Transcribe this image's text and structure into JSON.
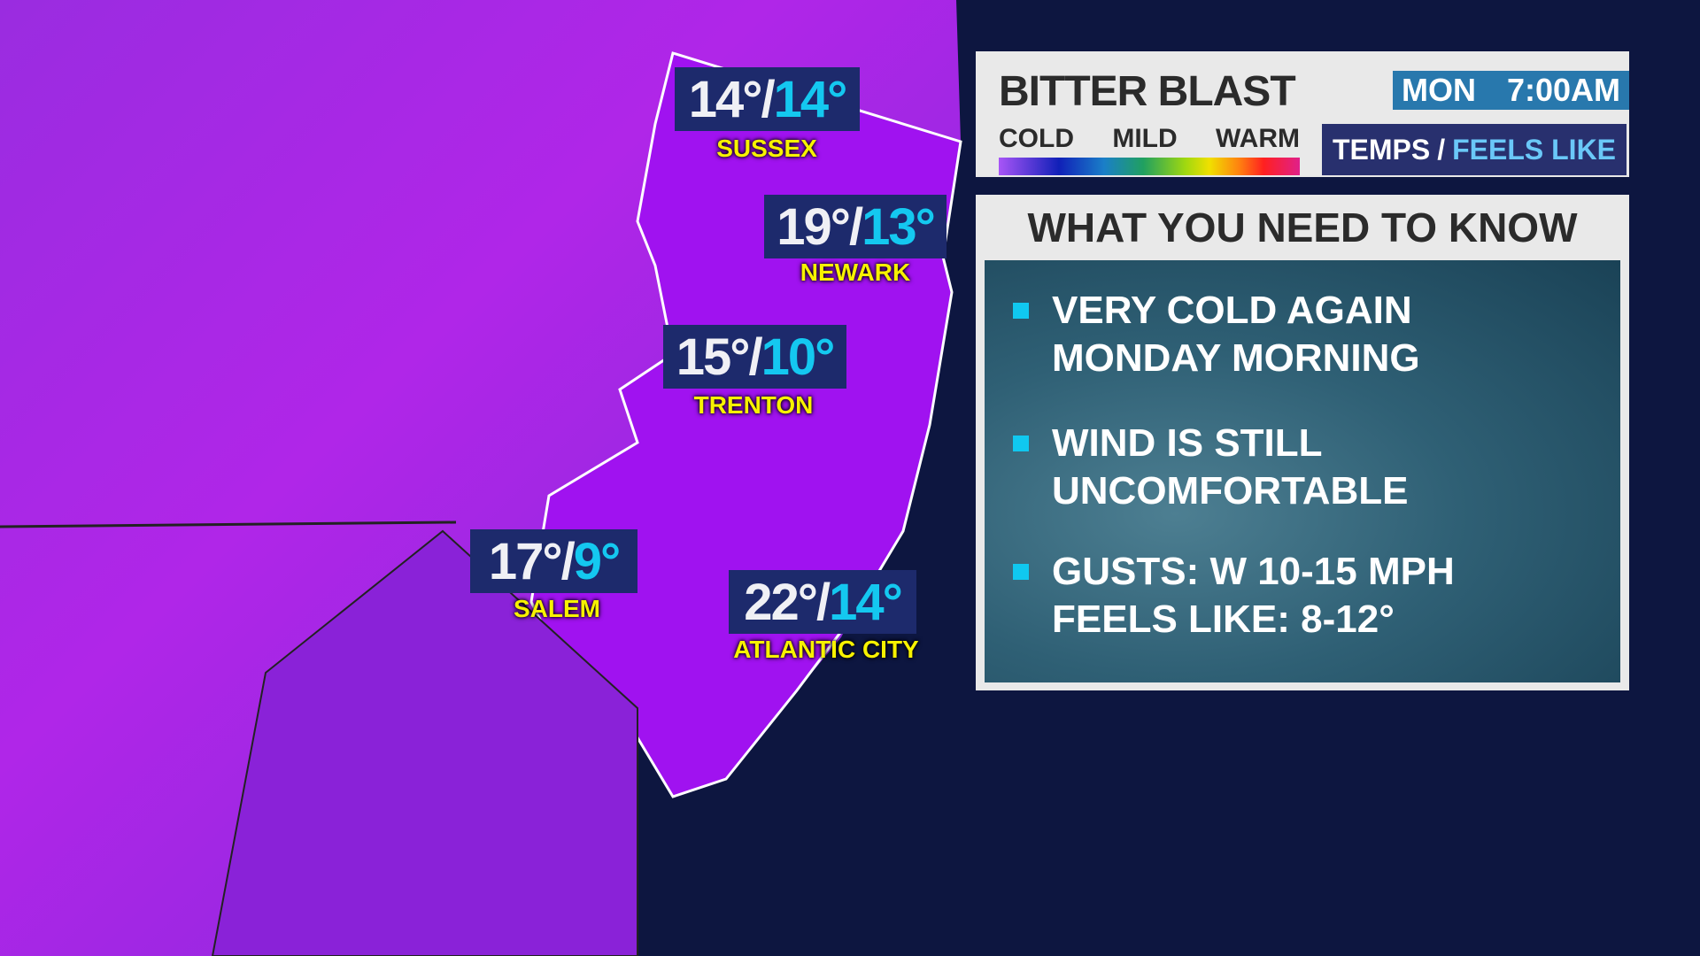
{
  "header": {
    "title": "BITTER BLAST",
    "day": "MON",
    "time": "7:00AM",
    "legend": {
      "cold": "COLD",
      "mild": "MILD",
      "warm": "WARM"
    },
    "mode": {
      "temps": "TEMPS",
      "sep": "/",
      "feels": "FEELS LIKE"
    }
  },
  "cities": [
    {
      "name": "SUSSEX",
      "temp": "14°",
      "feels": "14°"
    },
    {
      "name": "NEWARK",
      "temp": "19°",
      "feels": "13°"
    },
    {
      "name": "TRENTON",
      "temp": "15°",
      "feels": "10°"
    },
    {
      "name": "SALEM",
      "temp": "17°",
      "feels": "9°"
    },
    {
      "name": "ATLANTIC CITY",
      "temp": "22°",
      "feels": "14°"
    }
  ],
  "know": {
    "title": "WHAT YOU NEED TO KNOW",
    "bullets": [
      {
        "l1": "VERY COLD AGAIN",
        "l2": "MONDAY MORNING"
      },
      {
        "l1": "WIND IS STILL",
        "l2": "UNCOMFORTABLE"
      },
      {
        "l1": "GUSTS: W 10-15 MPH",
        "l2": "FEELS LIKE: 8-12°"
      }
    ]
  },
  "colors": {
    "temp_box": "#1d2a6c",
    "feels": "#14c8f0",
    "city_label": "#f7f200",
    "time_box": "#2878ad",
    "mode_box": "#28306e"
  }
}
